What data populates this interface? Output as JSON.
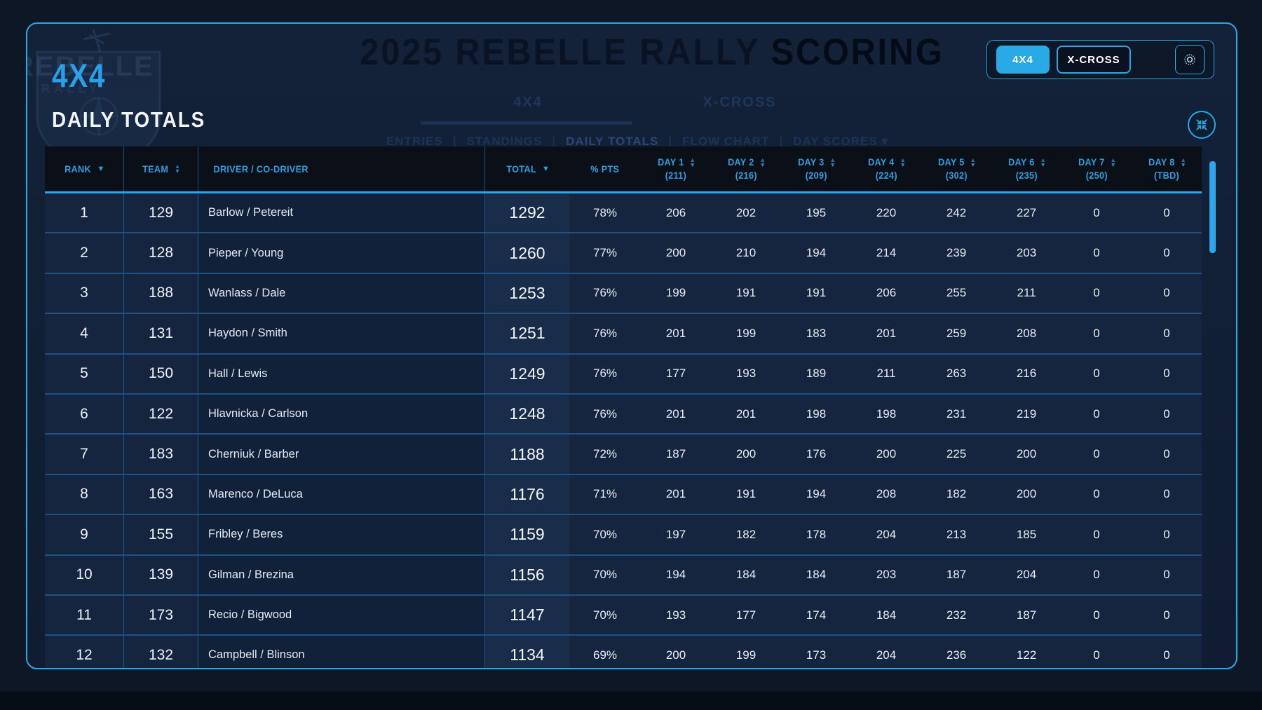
{
  "watermark": {
    "title_left": "2025 REBELLE RALLY ",
    "title_right": "SCORING",
    "logo_name": "rebelle-rally-shield-logo",
    "logo_text_top": "REBELLE",
    "logo_text_bottom": "RALLY",
    "tab_4x4": "4X4",
    "tab_xcross": "X-CROSS",
    "nav_items": [
      "ENTRIES",
      "STANDINGS",
      "DAILY TOTALS",
      "FLOW CHART",
      "DAY SCORES ▾"
    ]
  },
  "header": {
    "class_label": "4X4",
    "page_title": "DAILY TOTALS",
    "toggle": {
      "options": [
        "4X4",
        "X-CROSS"
      ],
      "active": "4X4",
      "brightness_icon": "sun-icon"
    },
    "compress_icon": "compress-arrows-icon"
  },
  "table": {
    "columns": [
      {
        "label": "RANK",
        "sub": "",
        "sort": "desc",
        "align": "center"
      },
      {
        "label": "TEAM",
        "sub": "",
        "sort": "both",
        "align": "center"
      },
      {
        "label": "DRIVER / CO-DRIVER",
        "sub": "",
        "sort": "none",
        "align": "left"
      },
      {
        "label": "TOTAL",
        "sub": "",
        "sort": "desc",
        "align": "center"
      },
      {
        "label": "% PTS",
        "sub": "",
        "sort": "none",
        "align": "center"
      },
      {
        "label": "DAY 1",
        "sub": "(211)",
        "sort": "both",
        "align": "center"
      },
      {
        "label": "DAY 2",
        "sub": "(216)",
        "sort": "both",
        "align": "center"
      },
      {
        "label": "DAY 3",
        "sub": "(209)",
        "sort": "both",
        "align": "center"
      },
      {
        "label": "DAY 4",
        "sub": "(224)",
        "sort": "both",
        "align": "center"
      },
      {
        "label": "DAY 5",
        "sub": "(302)",
        "sort": "both",
        "align": "center"
      },
      {
        "label": "DAY 6",
        "sub": "(235)",
        "sort": "both",
        "align": "center"
      },
      {
        "label": "DAY 7",
        "sub": "(250)",
        "sort": "both",
        "align": "center"
      },
      {
        "label": "DAY 8",
        "sub": "(TBD)",
        "sort": "both",
        "align": "center"
      }
    ],
    "rows": [
      {
        "rank": "1",
        "team": "129",
        "driver": "Barlow / Petereit",
        "total": "1292",
        "pts": "78%",
        "days": [
          "206",
          "202",
          "195",
          "220",
          "242",
          "227",
          "0",
          "0"
        ]
      },
      {
        "rank": "2",
        "team": "128",
        "driver": "Pieper / Young",
        "total": "1260",
        "pts": "77%",
        "days": [
          "200",
          "210",
          "194",
          "214",
          "239",
          "203",
          "0",
          "0"
        ]
      },
      {
        "rank": "3",
        "team": "188",
        "driver": "Wanlass / Dale",
        "total": "1253",
        "pts": "76%",
        "days": [
          "199",
          "191",
          "191",
          "206",
          "255",
          "211",
          "0",
          "0"
        ]
      },
      {
        "rank": "4",
        "team": "131",
        "driver": "Haydon / Smith",
        "total": "1251",
        "pts": "76%",
        "days": [
          "201",
          "199",
          "183",
          "201",
          "259",
          "208",
          "0",
          "0"
        ]
      },
      {
        "rank": "5",
        "team": "150",
        "driver": "Hall / Lewis",
        "total": "1249",
        "pts": "76%",
        "days": [
          "177",
          "193",
          "189",
          "211",
          "263",
          "216",
          "0",
          "0"
        ]
      },
      {
        "rank": "6",
        "team": "122",
        "driver": "Hlavnicka / Carlson",
        "total": "1248",
        "pts": "76%",
        "days": [
          "201",
          "201",
          "198",
          "198",
          "231",
          "219",
          "0",
          "0"
        ]
      },
      {
        "rank": "7",
        "team": "183",
        "driver": "Cherniuk / Barber",
        "total": "1188",
        "pts": "72%",
        "days": [
          "187",
          "200",
          "176",
          "200",
          "225",
          "200",
          "0",
          "0"
        ]
      },
      {
        "rank": "8",
        "team": "163",
        "driver": "Marenco / DeLuca",
        "total": "1176",
        "pts": "71%",
        "days": [
          "201",
          "191",
          "194",
          "208",
          "182",
          "200",
          "0",
          "0"
        ]
      },
      {
        "rank": "9",
        "team": "155",
        "driver": "Fribley / Beres",
        "total": "1159",
        "pts": "70%",
        "days": [
          "197",
          "182",
          "178",
          "204",
          "213",
          "185",
          "0",
          "0"
        ]
      },
      {
        "rank": "10",
        "team": "139",
        "driver": "Gilman / Brezina",
        "total": "1156",
        "pts": "70%",
        "days": [
          "194",
          "184",
          "184",
          "203",
          "187",
          "204",
          "0",
          "0"
        ]
      },
      {
        "rank": "11",
        "team": "173",
        "driver": "Recio / Bigwood",
        "total": "1147",
        "pts": "70%",
        "days": [
          "193",
          "177",
          "174",
          "184",
          "232",
          "187",
          "0",
          "0"
        ]
      },
      {
        "rank": "12",
        "team": "132",
        "driver": "Campbell / Blinson",
        "total": "1134",
        "pts": "69%",
        "days": [
          "200",
          "199",
          "173",
          "204",
          "236",
          "122",
          "0",
          "0"
        ]
      }
    ]
  },
  "colors": {
    "accent_blue": "#2aa7e5",
    "active_button_bg": "#29a9e6",
    "header_text_blue": "#2f9fe0",
    "row_bg": "#152540",
    "table_header_bg": "#0b1018",
    "panel_bg": "#112036",
    "page_bg": "#0e1726",
    "row_separator": "#2680c3",
    "text_white": "#f2f5fa"
  }
}
